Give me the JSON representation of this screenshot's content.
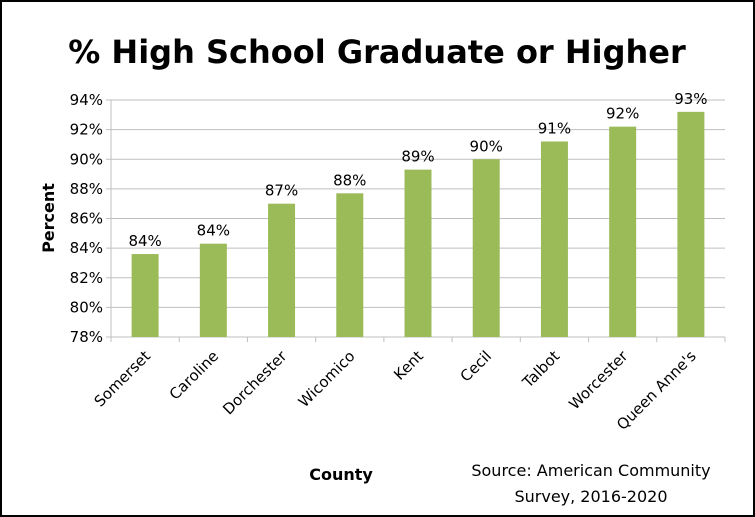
{
  "chart_data": {
    "type": "bar",
    "title": "% High School Graduate or Higher",
    "xlabel": "County",
    "ylabel": "Percent",
    "categories": [
      "Somerset",
      "Caroline",
      "Dorchester",
      "Wicomico",
      "Kent",
      "Cecil",
      "Talbot",
      "Worcester",
      "Queen Anne's"
    ],
    "values": [
      83.6,
      84.3,
      87.0,
      87.7,
      89.3,
      90.0,
      91.2,
      92.2,
      93.2
    ],
    "data_labels": [
      "84%",
      "84%",
      "87%",
      "88%",
      "89%",
      "90%",
      "91%",
      "92%",
      "93%"
    ],
    "yticks": [
      "78%",
      "80%",
      "82%",
      "84%",
      "86%",
      "88%",
      "90%",
      "92%",
      "94%"
    ],
    "ylim": [
      78,
      94
    ],
    "ytick_step": 2,
    "grid": true,
    "bar_color": "#9BBB59",
    "gridline_color": "#BFBFBF",
    "source_note": [
      "Source: American Community",
      "Survey, 2016-2020"
    ]
  }
}
